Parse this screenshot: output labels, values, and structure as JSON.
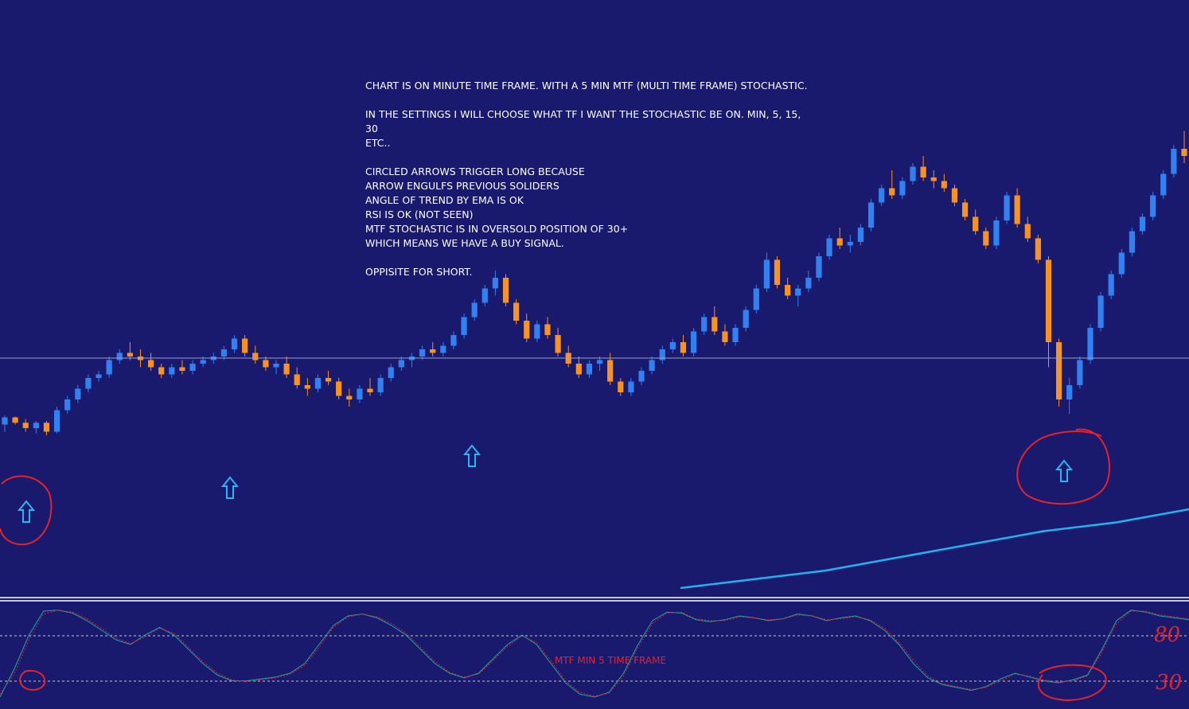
{
  "annotation": {
    "line1": "CHART IS ON MINUTE TIME FRAME. WITH A 5 MIN MTF (MULTI TIME FRAME) STOCHASTIC.",
    "line2": "IN THE SETTINGS I WILL CHOOSE WHAT TF I WANT THE STOCHASTIC BE ON. MIN, 5, 15, 30",
    "line3": "ETC..",
    "line4": "CIRCLED ARROWS TRIGGER LONG BECAUSE",
    "line5": "ARROW ENGULFS PREVIOUS SOLIDERS",
    "line6": "ANGLE OF TREND BY EMA IS OK",
    "line7": "RSI IS OK (NOT SEEN)",
    "line8": "MTF STOCHASTIC IS IN OVERSOLD POSITION OF 30+",
    "line9": "WHICH MEANS WE HAVE A BUY SIGNAL.",
    "line10": "OPPISITE FOR SHORT."
  },
  "oscillator": {
    "label": "MTF MIN 5 TIME FRAME",
    "handwritten_upper": "80",
    "handwritten_lower": "30"
  },
  "colors": {
    "background": "#19196e",
    "bull": "#2f82f0",
    "bear": "#f7931e",
    "doji": "#3fb84a",
    "ema": "#1eb4f0",
    "arrow": "#27b6f2",
    "circle": "#e5232a",
    "stoch_main": "#26a69a",
    "stoch_signal": "#e5232a"
  },
  "chart_data": [
    {
      "type": "candlestick",
      "title": "",
      "timeframe": "1 minute",
      "ylim": [
        0,
        100
      ],
      "series": [
        {
          "name": "",
          "candles": [
            [
              17,
              19.5,
              15,
              19
            ],
            [
              19,
              19.2,
              17,
              17.5
            ],
            [
              17.5,
              18.5,
              15,
              16
            ],
            [
              16,
              18,
              14.5,
              17.5
            ],
            [
              17.5,
              18,
              14,
              15
            ],
            [
              15,
              22,
              14.5,
              21
            ],
            [
              21,
              25,
              20,
              24
            ],
            [
              24,
              28,
              23,
              27
            ],
            [
              27,
              31,
              26,
              30
            ],
            [
              30,
              32,
              29,
              31
            ],
            [
              31,
              36,
              30,
              35
            ],
            [
              35,
              38,
              34,
              37
            ],
            [
              37,
              40,
              35,
              36
            ],
            [
              36,
              38,
              33,
              35
            ],
            [
              35,
              37,
              32,
              33
            ],
            [
              33,
              34,
              30,
              31
            ],
            [
              31,
              34,
              30,
              33
            ],
            [
              33,
              35,
              31,
              32
            ],
            [
              32,
              35,
              31,
              34
            ],
            [
              34,
              36,
              33,
              35
            ],
            [
              35,
              37,
              34,
              36
            ],
            [
              36,
              39,
              35,
              38
            ],
            [
              38,
              42,
              37,
              41
            ],
            [
              41,
              42,
              36,
              37
            ],
            [
              37,
              39,
              34,
              35
            ],
            [
              35,
              36,
              32,
              33
            ],
            [
              33,
              35,
              31,
              34
            ],
            [
              34,
              36,
              30,
              31
            ],
            [
              31,
              33,
              27,
              28
            ],
            [
              28,
              30,
              25,
              27
            ],
            [
              27,
              31,
              26,
              30
            ],
            [
              30,
              32,
              28,
              29
            ],
            [
              29,
              30,
              24,
              25
            ],
            [
              25,
              27,
              22,
              24
            ],
            [
              24,
              28,
              23,
              27
            ],
            [
              27,
              30,
              25,
              26
            ],
            [
              26,
              31,
              25,
              30
            ],
            [
              30,
              34,
              29,
              33
            ],
            [
              33,
              36,
              32,
              35
            ],
            [
              35,
              37,
              33,
              36
            ],
            [
              36,
              39,
              35,
              38
            ],
            [
              38,
              40,
              36,
              37
            ],
            [
              37,
              40,
              36,
              39
            ],
            [
              39,
              43,
              38,
              42
            ],
            [
              42,
              48,
              41,
              47
            ],
            [
              47,
              52,
              46,
              51
            ],
            [
              51,
              56,
              50,
              55
            ],
            [
              55,
              60,
              53,
              58
            ],
            [
              58,
              59,
              50,
              51
            ],
            [
              51,
              52,
              45,
              46
            ],
            [
              46,
              48,
              40,
              41
            ],
            [
              41,
              46,
              40,
              45
            ],
            [
              45,
              47,
              41,
              42
            ],
            [
              42,
              44,
              36,
              37
            ],
            [
              37,
              39,
              33,
              34
            ],
            [
              34,
              36,
              30,
              31
            ],
            [
              31,
              35,
              30,
              34
            ],
            [
              34,
              36,
              32,
              35
            ],
            [
              35,
              37,
              28,
              29
            ],
            [
              29,
              30,
              25,
              26
            ],
            [
              26,
              30,
              25,
              29
            ],
            [
              29,
              33,
              28,
              32
            ],
            [
              32,
              36,
              31,
              35
            ],
            [
              35,
              39,
              34,
              38
            ],
            [
              38,
              41,
              37,
              40
            ],
            [
              40,
              42,
              36,
              37
            ],
            [
              37,
              44,
              36,
              43
            ],
            [
              43,
              48,
              42,
              47
            ],
            [
              47,
              50,
              42,
              43
            ],
            [
              43,
              45,
              39,
              40
            ],
            [
              40,
              45,
              39,
              44
            ],
            [
              44,
              50,
              43,
              49
            ],
            [
              49,
              56,
              48,
              55
            ],
            [
              55,
              65,
              54,
              63
            ],
            [
              63,
              64,
              55,
              56
            ],
            [
              56,
              58,
              52,
              53
            ],
            [
              53,
              56,
              50,
              55
            ],
            [
              55,
              60,
              54,
              58
            ],
            [
              58,
              65,
              57,
              64
            ],
            [
              64,
              70,
              63,
              69
            ],
            [
              69,
              72,
              66,
              67
            ],
            [
              67,
              70,
              65,
              68
            ],
            [
              68,
              73,
              67,
              72
            ],
            [
              72,
              80,
              71,
              79
            ],
            [
              79,
              84,
              78,
              83
            ],
            [
              83,
              88,
              80,
              81
            ],
            [
              81,
              86,
              80,
              85
            ],
            [
              85,
              90,
              84,
              89
            ],
            [
              89,
              92,
              85,
              86
            ],
            [
              86,
              88,
              83,
              85
            ],
            [
              85,
              87,
              82,
              83
            ],
            [
              83,
              84,
              78,
              79
            ],
            [
              79,
              80,
              74,
              75
            ],
            [
              75,
              77,
              70,
              71
            ],
            [
              71,
              72,
              66,
              67
            ],
            [
              67,
              75,
              66,
              74
            ],
            [
              74,
              82,
              73,
              81
            ],
            [
              81,
              83,
              72,
              73
            ],
            [
              73,
              75,
              68,
              69
            ],
            [
              69,
              70,
              62,
              63
            ],
            [
              63,
              64,
              33,
              40
            ],
            [
              40,
              41,
              22,
              24
            ],
            [
              24,
              30,
              20,
              28
            ],
            [
              28,
              36,
              27,
              35
            ],
            [
              35,
              45,
              34,
              44
            ],
            [
              44,
              54,
              43,
              53
            ],
            [
              53,
              60,
              52,
              59
            ],
            [
              59,
              66,
              58,
              65
            ],
            [
              65,
              72,
              64,
              71
            ],
            [
              71,
              76,
              70,
              75
            ],
            [
              75,
              82,
              74,
              81
            ],
            [
              81,
              88,
              80,
              87
            ],
            [
              87,
              95,
              86,
              94
            ],
            [
              94,
              99,
              90,
              92
            ]
          ]
        },
        {
          "name": "EMA",
          "values_note": "long-period EMA, rising",
          "values": [
            2,
            3,
            4,
            5,
            6,
            7.5,
            9,
            10.5,
            12,
            13.5,
            15,
            16,
            17,
            18.5,
            20
          ]
        }
      ]
    },
    {
      "type": "line",
      "title": "",
      "ylim": [
        0,
        100
      ],
      "levels": [
        30,
        80
      ],
      "series": [
        {
          "name": "",
          "values": [
            5,
            35,
            70,
            95,
            96,
            93,
            85,
            75,
            65,
            60,
            70,
            78,
            70,
            55,
            40,
            28,
            22,
            22,
            24,
            26,
            30,
            40,
            60,
            80,
            90,
            92,
            88,
            80,
            70,
            55,
            40,
            30,
            25,
            30,
            45,
            60,
            70,
            60,
            40,
            20,
            8,
            5,
            10,
            30,
            60,
            85,
            94,
            93,
            86,
            84,
            86,
            90,
            88,
            85,
            87,
            92,
            90,
            85,
            88,
            90,
            85,
            75,
            60,
            40,
            25,
            18,
            15,
            12,
            16,
            24,
            30,
            26,
            22,
            20,
            23,
            28,
            55,
            85,
            96,
            94,
            90,
            88,
            86
          ]
        },
        {
          "name": "",
          "values": [
            8,
            30,
            65,
            92,
            96,
            94,
            87,
            77,
            67,
            61,
            68,
            77,
            72,
            57,
            42,
            30,
            23,
            21,
            23,
            25,
            29,
            38,
            57,
            78,
            89,
            92,
            89,
            82,
            72,
            57,
            42,
            31,
            26,
            29,
            43,
            58,
            69,
            62,
            43,
            22,
            10,
            6,
            9,
            27,
            57,
            82,
            93,
            94,
            87,
            85,
            85,
            89,
            88,
            86,
            87,
            91,
            90,
            86,
            87,
            89,
            86,
            77,
            62,
            43,
            27,
            19,
            16,
            13,
            15,
            22,
            29,
            27,
            23,
            21,
            22,
            27,
            52,
            82,
            95,
            95,
            91,
            89,
            87
          ]
        }
      ]
    }
  ]
}
